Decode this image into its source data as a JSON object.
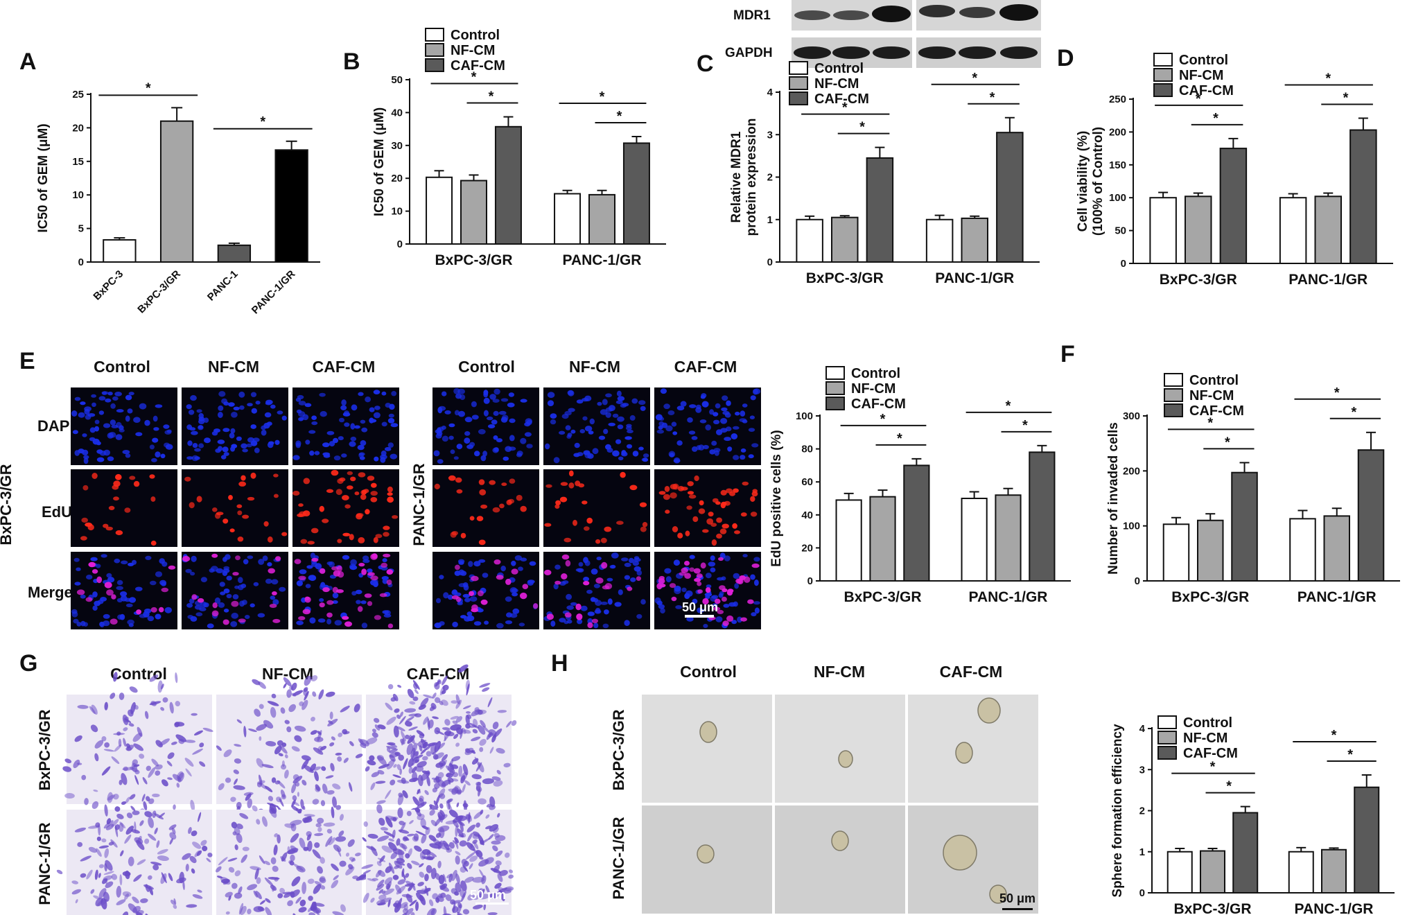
{
  "panel_letters": [
    "A",
    "B",
    "C",
    "D",
    "E",
    "F",
    "G",
    "H"
  ],
  "colors": {
    "control": "#ffffff",
    "nf_cm": "#a6a6a6",
    "caf_cm": "#5a5a5a",
    "bxpc3": "#ffffff",
    "bxpc3_gr": "#a6a6a6",
    "panc1": "#5a5a5a",
    "panc1_gr": "#000000",
    "fluor_background": "#050510",
    "dapi": "#1a2ee8",
    "edu": "#ff2a1a",
    "merge": "#e01fd8",
    "crystal_violet": "#6a4cc8",
    "sphere_background": "#d9d9d9"
  },
  "blot": {
    "labels": [
      "MDR1",
      "GAPDH"
    ]
  },
  "images_E": {
    "col_labels": [
      "Control",
      "NF-CM",
      "CAF-CM"
    ],
    "row_labels": [
      "DAPI",
      "EdU",
      "Merge"
    ],
    "group_labels": [
      "BxPC-3/GR",
      "PANC-1/GR"
    ],
    "scale_bar": "50 μm"
  },
  "images_G": {
    "col_labels": [
      "Control",
      "NF-CM",
      "CAF-CM"
    ],
    "row_labels": [
      "BxPC-3/GR",
      "PANC-1/GR"
    ],
    "scale_bar": "50 μm"
  },
  "images_H": {
    "col_labels": [
      "Control",
      "NF-CM",
      "CAF-CM"
    ],
    "row_labels": [
      "BxPC-3/GR",
      "PANC-1/GR"
    ],
    "scale_bar": "50 μm"
  },
  "chart_data": [
    {
      "panel": "A",
      "type": "bar",
      "categories": [
        "BxPC-3",
        "BxPC-3/GR",
        "PANC-1",
        "PANC-1/GR"
      ],
      "values": [
        3.3,
        21.0,
        2.5,
        16.7
      ],
      "errors": [
        0.3,
        2.0,
        0.3,
        1.3
      ],
      "bar_colors": [
        "#ffffff",
        "#a6a6a6",
        "#5a5a5a",
        "#000000"
      ],
      "ylabel": "IC50 of GEM (μM)",
      "ylim": [
        0,
        25
      ],
      "yticks": [
        0,
        5,
        10,
        15,
        20,
        25
      ],
      "significance": [
        {
          "from": 0,
          "to": 1,
          "label": "*"
        },
        {
          "from": 2,
          "to": 3,
          "label": "*"
        }
      ],
      "legend": false,
      "grid": false
    },
    {
      "panel": "B",
      "type": "bar",
      "categories": [
        "BxPC-3/GR",
        "PANC-1/GR"
      ],
      "series": [
        {
          "name": "Control",
          "values": [
            20.3,
            15.3
          ],
          "errors": [
            2.0,
            1.0
          ]
        },
        {
          "name": "NF-CM",
          "values": [
            19.3,
            15.0
          ],
          "errors": [
            1.7,
            1.3
          ]
        },
        {
          "name": "CAF-CM",
          "values": [
            35.7,
            30.7
          ],
          "errors": [
            3.0,
            2.0
          ]
        }
      ],
      "ylabel": "IC50 of GEM (μM)",
      "ylim": [
        0,
        50
      ],
      "yticks": [
        0,
        10,
        20,
        30,
        40,
        50
      ],
      "significance": "* Control vs CAF-CM and NF-CM vs CAF-CM in each group",
      "legend": "top-left",
      "grid": false
    },
    {
      "panel": "C",
      "type": "bar",
      "categories": [
        "BxPC-3/GR",
        "PANC-1/GR"
      ],
      "series": [
        {
          "name": "Control",
          "values": [
            1.0,
            1.0
          ],
          "errors": [
            0.08,
            0.1
          ]
        },
        {
          "name": "NF-CM",
          "values": [
            1.05,
            1.03
          ],
          "errors": [
            0.04,
            0.05
          ]
        },
        {
          "name": "CAF-CM",
          "values": [
            2.45,
            3.05
          ],
          "errors": [
            0.25,
            0.35
          ]
        }
      ],
      "ylabel": "Relative MDR1 protein expression",
      "ylim": [
        0,
        4
      ],
      "yticks": [
        0,
        1,
        2,
        3,
        4
      ],
      "significance": "* Control vs CAF-CM and NF-CM vs CAF-CM in each group",
      "legend": "top-left",
      "grid": false
    },
    {
      "panel": "D",
      "type": "bar",
      "categories": [
        "BxPC-3/GR",
        "PANC-1/GR"
      ],
      "series": [
        {
          "name": "Control",
          "values": [
            100,
            100
          ],
          "errors": [
            8,
            6
          ]
        },
        {
          "name": "NF-CM",
          "values": [
            102,
            102
          ],
          "errors": [
            5,
            5
          ]
        },
        {
          "name": "CAF-CM",
          "values": [
            175,
            203
          ],
          "errors": [
            15,
            18
          ]
        }
      ],
      "ylabel": "Cell viability (%) (100% of Control)",
      "ylim": [
        0,
        250
      ],
      "yticks": [
        0,
        50,
        100,
        150,
        200,
        250
      ],
      "significance": "* Control vs CAF-CM and NF-CM vs CAF-CM in each group",
      "legend": "top-left",
      "grid": false
    },
    {
      "panel": "E",
      "type": "bar",
      "categories": [
        "BxPC-3/GR",
        "PANC-1/GR"
      ],
      "series": [
        {
          "name": "Control",
          "values": [
            49,
            50
          ],
          "errors": [
            4,
            4
          ]
        },
        {
          "name": "NF-CM",
          "values": [
            51,
            52
          ],
          "errors": [
            4,
            4
          ]
        },
        {
          "name": "CAF-CM",
          "values": [
            70,
            78
          ],
          "errors": [
            4,
            4
          ]
        }
      ],
      "ylabel": "EdU positive cells (%)",
      "ylim": [
        0,
        100
      ],
      "yticks": [
        0,
        20,
        40,
        60,
        80,
        100
      ],
      "significance": "* Control vs CAF-CM and NF-CM vs CAF-CM in each group",
      "legend": "top-left",
      "grid": false
    },
    {
      "panel": "F",
      "type": "bar",
      "categories": [
        "BxPC-3/GR",
        "PANC-1/GR"
      ],
      "series": [
        {
          "name": "Control",
          "values": [
            103,
            113
          ],
          "errors": [
            12,
            15
          ]
        },
        {
          "name": "NF-CM",
          "values": [
            110,
            118
          ],
          "errors": [
            12,
            14
          ]
        },
        {
          "name": "CAF-CM",
          "values": [
            197,
            238
          ],
          "errors": [
            18,
            32
          ]
        }
      ],
      "ylabel": "Number of invaded cells",
      "ylim": [
        0,
        300
      ],
      "yticks": [
        0,
        100,
        200,
        300
      ],
      "significance": "* Control vs CAF-CM and NF-CM vs CAF-CM in each group",
      "legend": "top-left",
      "grid": false
    },
    {
      "panel": "H",
      "type": "bar",
      "categories": [
        "BxPC-3/GR",
        "PANC-1/GR"
      ],
      "series": [
        {
          "name": "Control",
          "values": [
            1.0,
            1.0
          ],
          "errors": [
            0.08,
            0.1
          ]
        },
        {
          "name": "NF-CM",
          "values": [
            1.02,
            1.05
          ],
          "errors": [
            0.06,
            0.04
          ]
        },
        {
          "name": "CAF-CM",
          "values": [
            1.95,
            2.57
          ],
          "errors": [
            0.15,
            0.3
          ]
        }
      ],
      "ylabel": "Sphere formation efficiency",
      "ylim": [
        0,
        4
      ],
      "yticks": [
        0,
        1,
        2,
        3,
        4
      ],
      "significance": "* Control vs CAF-CM and NF-CM vs CAF-CM in each group",
      "legend": "top-left",
      "grid": false
    }
  ]
}
